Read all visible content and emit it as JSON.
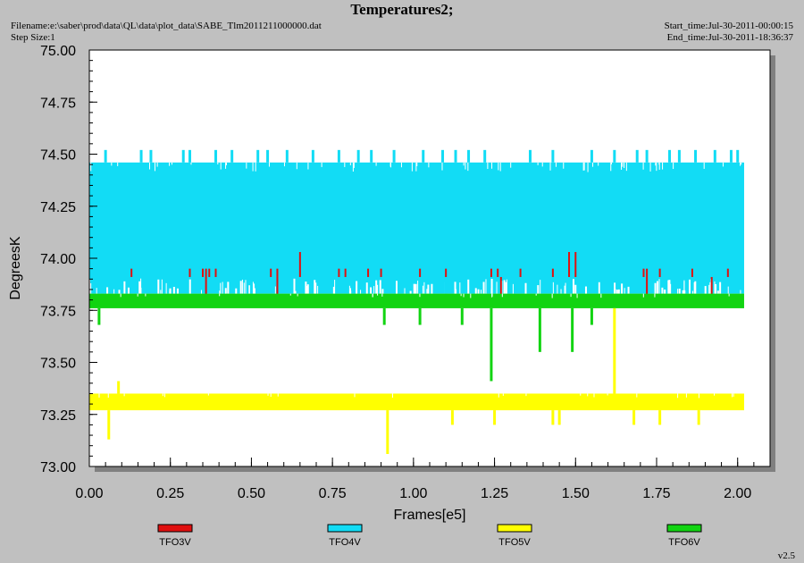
{
  "header": {
    "title": "Temperatures2;",
    "filename": "Filename:e:\\saber\\prod\\data\\QL\\data\\plot_data\\SABE_Tlm2011211000000.dat",
    "step_size": "Step Size:1",
    "start_time": "Start_time:Jul-30-2011-00:00:15",
    "end_time": "End_time:Jul-30-2011-18:36:37"
  },
  "footer": {
    "version": "v2.5"
  },
  "colors": {
    "plot_bg": "#ffffff",
    "page_bg": "#c0c0c0",
    "TFO3V": "#e01010",
    "TFO4V": "#12dcf5",
    "TFO5V": "#ffff00",
    "TFO6V": "#12d412"
  },
  "chart_data": {
    "type": "line",
    "xlabel": "Frames[e5]",
    "ylabel": "DegreesK",
    "xlim": [
      0,
      2.1
    ],
    "ylim": [
      73.0,
      75.0
    ],
    "x_ticks": [
      "0.00",
      "0.25",
      "0.50",
      "0.75",
      "1.00",
      "1.25",
      "1.50",
      "1.75",
      "2.00"
    ],
    "y_ticks": [
      "73.00",
      "73.25",
      "73.50",
      "73.75",
      "74.00",
      "74.25",
      "74.50",
      "74.75",
      "75.00"
    ],
    "grid": false,
    "legend_position": "bottom",
    "x_start": 0.0,
    "x_end": 2.02,
    "series": [
      {
        "name": "TFO4V",
        "band": [
          73.83,
          74.46
        ],
        "spikes_up": [
          [
            0.05,
            74.52
          ],
          [
            0.16,
            74.52
          ],
          [
            0.19,
            74.52
          ],
          [
            0.29,
            74.52
          ],
          [
            0.31,
            74.52
          ],
          [
            0.39,
            74.52
          ],
          [
            0.44,
            74.52
          ],
          [
            0.52,
            74.52
          ],
          [
            0.55,
            74.52
          ],
          [
            0.61,
            74.52
          ],
          [
            0.69,
            74.52
          ],
          [
            0.77,
            74.52
          ],
          [
            0.83,
            74.52
          ],
          [
            0.87,
            74.52
          ],
          [
            0.94,
            74.52
          ],
          [
            1.03,
            74.52
          ],
          [
            1.09,
            74.52
          ],
          [
            1.13,
            74.52
          ],
          [
            1.17,
            74.52
          ],
          [
            1.22,
            74.52
          ],
          [
            1.36,
            74.52
          ],
          [
            1.43,
            74.52
          ],
          [
            1.55,
            74.52
          ],
          [
            1.62,
            74.52
          ],
          [
            1.69,
            74.52
          ],
          [
            1.72,
            74.52
          ],
          [
            1.79,
            74.52
          ],
          [
            1.82,
            74.52
          ],
          [
            1.87,
            74.52
          ],
          [
            1.93,
            74.52
          ],
          [
            1.98,
            74.52
          ],
          [
            2.0,
            74.52
          ]
        ],
        "spikes_down": [
          [
            0.04,
            74.34
          ],
          [
            0.5,
            74.38
          ],
          [
            1.1,
            74.36
          ],
          [
            1.58,
            74.4
          ]
        ]
      },
      {
        "name": "TFO3V",
        "spikes": [
          [
            0.13,
            73.95
          ],
          [
            0.31,
            73.95
          ],
          [
            0.35,
            73.95
          ],
          [
            0.36,
            73.95
          ],
          [
            0.37,
            73.95
          ],
          [
            0.39,
            73.95
          ],
          [
            0.56,
            73.95
          ],
          [
            0.58,
            73.95
          ],
          [
            0.65,
            74.03
          ],
          [
            0.77,
            73.95
          ],
          [
            0.79,
            73.95
          ],
          [
            0.86,
            73.95
          ],
          [
            0.9,
            73.95
          ],
          [
            1.02,
            73.95
          ],
          [
            1.1,
            73.95
          ],
          [
            1.24,
            73.95
          ],
          [
            1.26,
            73.95
          ],
          [
            1.33,
            73.95
          ],
          [
            1.43,
            73.95
          ],
          [
            1.48,
            74.03
          ],
          [
            1.5,
            74.03
          ],
          [
            1.71,
            73.95
          ],
          [
            1.72,
            73.95
          ],
          [
            1.76,
            73.95
          ],
          [
            1.86,
            73.95
          ],
          [
            1.97,
            73.95
          ]
        ],
        "dips": [
          [
            0.36,
            73.8
          ],
          [
            0.58,
            73.8
          ],
          [
            1.27,
            73.8
          ],
          [
            1.72,
            73.8
          ],
          [
            1.92,
            73.8
          ]
        ]
      },
      {
        "name": "TFO6V",
        "band": [
          73.76,
          73.83
        ],
        "spikes_down": [
          [
            0.03,
            73.68
          ],
          [
            0.91,
            73.68
          ],
          [
            1.02,
            73.68
          ],
          [
            1.15,
            73.68
          ],
          [
            1.24,
            73.41
          ],
          [
            1.39,
            73.55
          ],
          [
            1.49,
            73.55
          ],
          [
            1.55,
            73.68
          ]
        ]
      },
      {
        "name": "TFO5V",
        "band": [
          73.27,
          73.35
        ],
        "spikes_up": [
          [
            0.09,
            73.41
          ],
          [
            1.62,
            73.76
          ]
        ],
        "spikes_down": [
          [
            0.06,
            73.13
          ],
          [
            0.92,
            73.06
          ],
          [
            1.12,
            73.2
          ],
          [
            1.25,
            73.2
          ],
          [
            1.43,
            73.2
          ],
          [
            1.45,
            73.2
          ],
          [
            1.68,
            73.2
          ],
          [
            1.76,
            73.2
          ],
          [
            1.88,
            73.2
          ]
        ]
      }
    ]
  }
}
